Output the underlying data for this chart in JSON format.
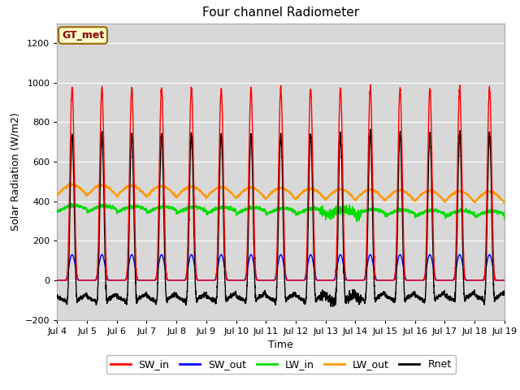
{
  "title": "Four channel Radiometer",
  "xlabel": "Time",
  "ylabel": "Solar Radiation (W/m2)",
  "ylim": [
    -200,
    1300
  ],
  "yticks": [
    -200,
    0,
    200,
    400,
    600,
    800,
    1000,
    1200
  ],
  "start_day": 4,
  "end_day": 19,
  "n_days": 15,
  "colors": {
    "SW_in": "#ff0000",
    "SW_out": "#0000ff",
    "LW_in": "#00dd00",
    "LW_out": "#ff9900",
    "Rnet": "#000000"
  },
  "legend_labels": [
    "SW_in",
    "SW_out",
    "LW_in",
    "LW_out",
    "Rnet"
  ],
  "annotation_text": "GT_met",
  "annotation_bg": "#ffffcc",
  "annotation_border": "#996600",
  "fig_bg": "#ffffff",
  "plot_bg": "#d8d8d8",
  "SW_in_peak": 970,
  "SW_out_peak": 130,
  "LW_in_base": 355,
  "LW_out_base": 430,
  "hours_per_day": 24,
  "pts_per_hour": 10
}
